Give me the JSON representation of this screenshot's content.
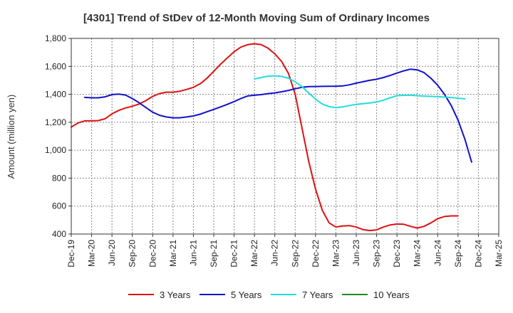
{
  "chart_data": {
    "type": "line",
    "title": "[4301]  Trend of StDev of 12-Month Moving Sum of Ordinary Incomes",
    "xlabel": "",
    "ylabel": "Amount (million yen)",
    "ylim": [
      400,
      1800
    ],
    "yticks": [
      400,
      600,
      800,
      1000,
      1200,
      1400,
      1600,
      1800
    ],
    "ytick_labels": [
      "400",
      "600",
      "800",
      "1,000",
      "1,200",
      "1,400",
      "1,600",
      "1,800"
    ],
    "x_start": "Dec-19",
    "x_tick_labels": [
      "Dec-19",
      "Mar-20",
      "Jun-20",
      "Sep-20",
      "Dec-20",
      "Mar-21",
      "Jun-21",
      "Sep-21",
      "Dec-21",
      "Mar-22",
      "Jun-22",
      "Sep-22",
      "Dec-22",
      "Mar-23",
      "Jun-23",
      "Sep-23",
      "Dec-23",
      "Mar-24",
      "Jun-24",
      "Sep-24",
      "Dec-24",
      "Mar-25"
    ],
    "grid": true,
    "legend_position": "bottom",
    "series": [
      {
        "name": "3 Years",
        "color": "#dd1111",
        "start_month": 0,
        "values": [
          1165,
          1195,
          1210,
          1210,
          1212,
          1225,
          1260,
          1285,
          1302,
          1315,
          1330,
          1355,
          1385,
          1405,
          1415,
          1415,
          1422,
          1435,
          1450,
          1475,
          1515,
          1565,
          1615,
          1660,
          1705,
          1738,
          1755,
          1762,
          1755,
          1730,
          1690,
          1635,
          1550,
          1400,
          1160,
          920,
          720,
          570,
          480,
          450,
          458,
          460,
          450,
          432,
          425,
          430,
          450,
          465,
          472,
          470,
          455,
          443,
          455,
          480,
          510,
          525,
          530,
          530
        ]
      },
      {
        "name": "5 Years",
        "color": "#1111cc",
        "start_month": 2,
        "values": [
          1378,
          1375,
          1375,
          1382,
          1398,
          1402,
          1395,
          1370,
          1340,
          1305,
          1272,
          1250,
          1238,
          1232,
          1232,
          1238,
          1245,
          1258,
          1275,
          1292,
          1310,
          1328,
          1348,
          1370,
          1388,
          1393,
          1398,
          1405,
          1410,
          1418,
          1428,
          1440,
          1450,
          1455,
          1456,
          1457,
          1458,
          1458,
          1460,
          1468,
          1480,
          1490,
          1500,
          1508,
          1520,
          1535,
          1552,
          1568,
          1580,
          1575,
          1555,
          1515,
          1465,
          1400,
          1320,
          1215,
          1080,
          915
        ]
      },
      {
        "name": "7 Years",
        "color": "#22dddd",
        "start_month": 27,
        "values": [
          1510,
          1520,
          1530,
          1532,
          1528,
          1515,
          1490,
          1455,
          1410,
          1365,
          1330,
          1312,
          1305,
          1310,
          1320,
          1328,
          1333,
          1338,
          1345,
          1358,
          1375,
          1390,
          1393,
          1393,
          1390,
          1387,
          1385,
          1383,
          1380,
          1377,
          1372,
          1368
        ]
      },
      {
        "name": "10 Years",
        "color": "#228822",
        "start_month": 0,
        "values": []
      }
    ]
  }
}
